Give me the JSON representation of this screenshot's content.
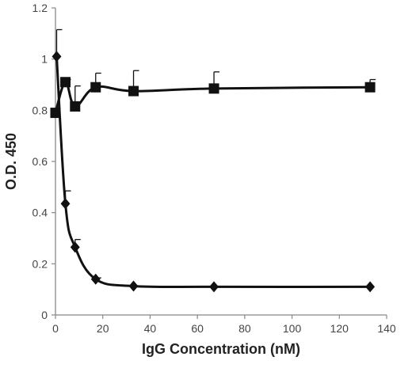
{
  "chart_data": {
    "type": "line",
    "title": "",
    "xlabel": "IgG Concentration (nM)",
    "ylabel": "O.D. 450",
    "xlim": [
      0,
      140
    ],
    "ylim": [
      0,
      1.2
    ],
    "x_ticks": [
      0,
      20,
      40,
      60,
      80,
      100,
      120,
      140
    ],
    "y_ticks": [
      0,
      0.2,
      0.4,
      0.6,
      0.8,
      1.0,
      1.2
    ],
    "x_tick_labels": [
      "0",
      "20",
      "40",
      "60",
      "80",
      "100",
      "120",
      "140"
    ],
    "y_tick_labels": [
      "0",
      "0.2",
      "0.4",
      "0.6",
      "0.8",
      "1",
      "1.2"
    ],
    "grid": false,
    "legend": "none",
    "series": [
      {
        "marker": "square",
        "color": "#111111",
        "points": [
          {
            "x": 0,
            "y": 0.79,
            "err": 0
          },
          {
            "x": 4.2,
            "y": 0.91,
            "err": 0.01
          },
          {
            "x": 8.3,
            "y": 0.815,
            "err": 0.08
          },
          {
            "x": 17,
            "y": 0.89,
            "err": 0.055
          },
          {
            "x": 33,
            "y": 0.875,
            "err": 0.08
          },
          {
            "x": 67,
            "y": 0.885,
            "err": 0.065
          },
          {
            "x": 133,
            "y": 0.89,
            "err": 0.03
          }
        ]
      },
      {
        "marker": "diamond",
        "color": "#111111",
        "points": [
          {
            "x": 0.5,
            "y": 1.01,
            "err": 0.105
          },
          {
            "x": 4.2,
            "y": 0.435,
            "err": 0.05
          },
          {
            "x": 8.3,
            "y": 0.265,
            "err": 0.03
          },
          {
            "x": 17,
            "y": 0.14,
            "err": 0.005
          },
          {
            "x": 33,
            "y": 0.113,
            "err": 0
          },
          {
            "x": 67,
            "y": 0.11,
            "err": 0
          },
          {
            "x": 133,
            "y": 0.11,
            "err": 0
          }
        ]
      }
    ]
  }
}
